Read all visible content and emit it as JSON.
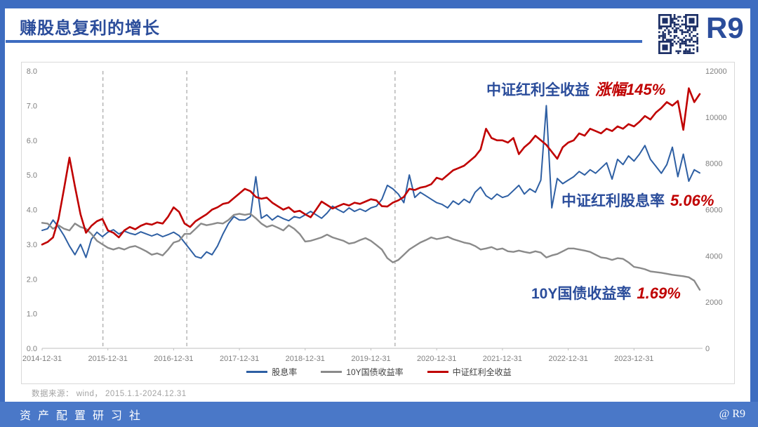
{
  "header": {
    "title": "赚股息复利的增长",
    "logo_text": "R9"
  },
  "chart": {
    "annotations": [
      {
        "label": "中证红利全收益",
        "value": "涨幅145%"
      },
      {
        "label": "中证红利股息率",
        "value": "5.06%"
      },
      {
        "label": "10Y国债收益率",
        "value": "1.69%"
      }
    ],
    "source_note": "数据来源： wind， 2015.1.1-2024.12.31"
  },
  "chart_data": {
    "type": "line",
    "title": "赚股息复利的增长",
    "x_unit": "months since 2014-12-31 (0..120), monthly samples 2015.1-2024.12",
    "x_ticks": [
      "2014-12-31",
      "2015-12-31",
      "2016-12-31",
      "2017-12-31",
      "2018-12-31",
      "2019-12-31",
      "2020-12-31",
      "2021-12-31",
      "2022-12-31",
      "2023-12-31"
    ],
    "x_tick_months": [
      0,
      12,
      24,
      36,
      48,
      60,
      72,
      84,
      96,
      108
    ],
    "left_axis": {
      "range": [
        0,
        8
      ],
      "ticks": [
        "0.0",
        "1.0",
        "2.0",
        "3.0",
        "4.0",
        "5.0",
        "6.0",
        "7.0",
        "8.0"
      ]
    },
    "right_axis": {
      "range": [
        0,
        12000
      ],
      "ticks": [
        "0",
        "2000",
        "4000",
        "6000",
        "8000",
        "10000",
        "12000"
      ]
    },
    "dashed_vlines_months": [
      11.1,
      26.4,
      64.4
    ],
    "grid": "off",
    "legend_position": "bottom-center",
    "series": [
      {
        "name": "股息率",
        "axis": "left",
        "color": "#2e5fa3",
        "width": 2,
        "values": [
          3.4,
          3.45,
          3.7,
          3.5,
          3.25,
          2.95,
          2.7,
          3.0,
          2.62,
          3.15,
          3.35,
          3.22,
          3.35,
          3.42,
          3.3,
          3.38,
          3.32,
          3.28,
          3.36,
          3.3,
          3.24,
          3.3,
          3.22,
          3.28,
          3.35,
          3.25,
          3.05,
          2.85,
          2.65,
          2.6,
          2.78,
          2.7,
          2.95,
          3.3,
          3.6,
          3.8,
          3.7,
          3.7,
          3.8,
          4.95,
          3.75,
          3.85,
          3.7,
          3.82,
          3.74,
          3.68,
          3.8,
          3.76,
          3.85,
          3.95,
          3.85,
          3.75,
          3.9,
          4.1,
          4.0,
          3.92,
          4.05,
          3.95,
          4.02,
          3.95,
          4.05,
          4.1,
          4.3,
          4.7,
          4.6,
          4.45,
          4.2,
          5.0,
          4.35,
          4.5,
          4.4,
          4.3,
          4.2,
          4.15,
          4.05,
          4.25,
          4.15,
          4.3,
          4.2,
          4.5,
          4.65,
          4.4,
          4.3,
          4.45,
          4.35,
          4.4,
          4.55,
          4.7,
          4.45,
          4.6,
          4.5,
          4.85,
          7.0,
          4.05,
          4.9,
          4.75,
          4.85,
          4.95,
          5.1,
          5.0,
          5.15,
          5.05,
          5.2,
          5.35,
          4.88,
          5.45,
          5.3,
          5.55,
          5.4,
          5.6,
          5.85,
          5.45,
          5.25,
          5.05,
          5.3,
          5.8,
          4.95,
          5.6,
          4.82,
          5.15,
          5.06
        ]
      },
      {
        "name": "10Y国债收益率",
        "axis": "left",
        "color": "#8a8a8a",
        "width": 2.4,
        "values": [
          3.62,
          3.6,
          3.45,
          3.55,
          3.45,
          3.4,
          3.6,
          3.5,
          3.45,
          3.3,
          3.1,
          3.0,
          2.9,
          2.85,
          2.9,
          2.85,
          2.92,
          2.95,
          2.88,
          2.8,
          2.7,
          2.74,
          2.68,
          2.85,
          3.05,
          3.1,
          3.3,
          3.3,
          3.45,
          3.6,
          3.55,
          3.58,
          3.62,
          3.6,
          3.7,
          3.85,
          3.88,
          3.85,
          3.88,
          3.75,
          3.6,
          3.5,
          3.55,
          3.48,
          3.4,
          3.55,
          3.45,
          3.3,
          3.08,
          3.1,
          3.15,
          3.2,
          3.28,
          3.2,
          3.15,
          3.1,
          3.02,
          3.05,
          3.12,
          3.18,
          3.1,
          2.98,
          2.85,
          2.6,
          2.48,
          2.55,
          2.7,
          2.85,
          2.95,
          3.05,
          3.12,
          3.2,
          3.15,
          3.18,
          3.22,
          3.15,
          3.1,
          3.05,
          3.02,
          2.95,
          2.85,
          2.88,
          2.92,
          2.85,
          2.88,
          2.8,
          2.78,
          2.82,
          2.78,
          2.75,
          2.8,
          2.76,
          2.62,
          2.68,
          2.72,
          2.8,
          2.88,
          2.88,
          2.85,
          2.82,
          2.78,
          2.7,
          2.62,
          2.6,
          2.55,
          2.6,
          2.58,
          2.48,
          2.35,
          2.32,
          2.28,
          2.22,
          2.2,
          2.18,
          2.15,
          2.12,
          2.1,
          2.08,
          2.05,
          1.95,
          1.69
        ]
      },
      {
        "name": "中证红利全收益",
        "axis": "right",
        "color": "#c00000",
        "width": 2.6,
        "values": [
          4490,
          4600,
          4800,
          5600,
          6900,
          8250,
          7000,
          5800,
          5000,
          5300,
          5500,
          5600,
          5100,
          5000,
          4800,
          5100,
          5250,
          5150,
          5300,
          5400,
          5350,
          5450,
          5400,
          5700,
          6100,
          5900,
          5400,
          5250,
          5500,
          5650,
          5800,
          6000,
          6100,
          6250,
          6300,
          6500,
          6700,
          6900,
          6800,
          6550,
          6470,
          6520,
          6300,
          6150,
          6000,
          6100,
          5900,
          5950,
          5800,
          5670,
          6000,
          6350,
          6200,
          6050,
          6150,
          6250,
          6180,
          6300,
          6250,
          6350,
          6450,
          6400,
          6150,
          6135,
          6300,
          6400,
          6550,
          6900,
          6850,
          6950,
          7000,
          7100,
          7380,
          7300,
          7500,
          7700,
          7800,
          7900,
          8100,
          8300,
          8600,
          9500,
          9100,
          9000,
          9000,
          8900,
          9100,
          8400,
          8700,
          8900,
          9200,
          9000,
          8800,
          8500,
          8200,
          8700,
          8900,
          9000,
          9300,
          9200,
          9500,
          9400,
          9300,
          9500,
          9400,
          9600,
          9500,
          9700,
          9600,
          9800,
          10050,
          9900,
          10200,
          10400,
          10650,
          10500,
          10700,
          9450,
          11250,
          10650,
          11000
        ]
      }
    ]
  },
  "footer": {
    "brand": "资产配置研习社",
    "credit": "@  R9"
  }
}
